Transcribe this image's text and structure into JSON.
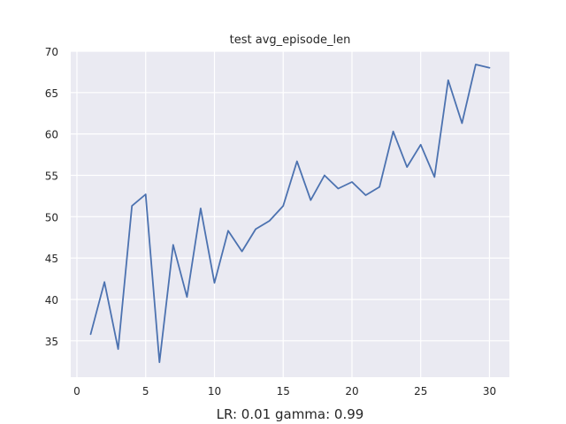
{
  "chart_data": {
    "type": "line",
    "title": "test avg_episode_len",
    "xlabel": "LR: 0.01 gamma: 0.99",
    "ylabel": "",
    "xlim": [
      -0.45,
      31.45
    ],
    "ylim": [
      30.6,
      70.0
    ],
    "xticks": [
      0,
      5,
      10,
      15,
      20,
      25,
      30
    ],
    "yticks": [
      35,
      40,
      45,
      50,
      55,
      60,
      65,
      70
    ],
    "grid": true,
    "colors": {
      "background": "#eaeaf2",
      "grid": "#ffffff",
      "line": "#4c72b0"
    },
    "series": [
      {
        "x": [
          1,
          2,
          3,
          4,
          5,
          6,
          7,
          8,
          9,
          10,
          11,
          12,
          13,
          14,
          15,
          16,
          17,
          18,
          19,
          20,
          21,
          22,
          23,
          24,
          25,
          26,
          27,
          28,
          29,
          30
        ],
        "values": [
          35.8,
          42.1,
          34.0,
          51.3,
          52.7,
          32.4,
          46.6,
          40.3,
          51.0,
          42.0,
          48.3,
          45.8,
          48.5,
          49.5,
          51.3,
          56.7,
          52.0,
          55.0,
          53.4,
          54.2,
          52.6,
          53.6,
          60.3,
          56.0,
          58.7,
          54.8,
          66.5,
          61.3,
          68.4,
          68.0
        ]
      }
    ]
  }
}
